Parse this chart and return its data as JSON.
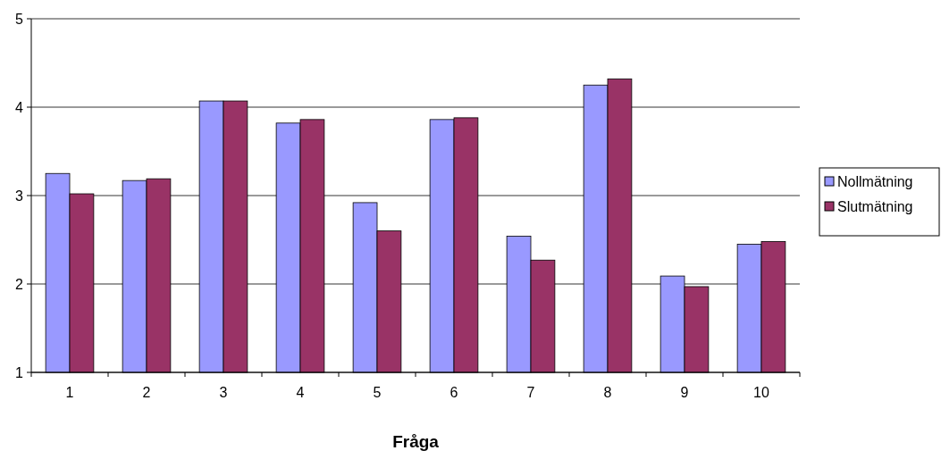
{
  "chart_data": {
    "type": "bar",
    "xlabel": "Fråga",
    "categories": [
      "1",
      "2",
      "3",
      "4",
      "5",
      "6",
      "7",
      "8",
      "9",
      "10"
    ],
    "series": [
      {
        "name": "Nollmätning",
        "color": "#9999ff",
        "values": [
          3.25,
          3.17,
          4.07,
          3.82,
          2.92,
          3.86,
          2.54,
          4.25,
          2.09,
          2.45
        ]
      },
      {
        "name": "Slutmätning",
        "color": "#993366",
        "values": [
          3.02,
          3.19,
          4.07,
          3.86,
          2.6,
          3.88,
          2.27,
          4.32,
          1.97,
          2.48
        ]
      }
    ],
    "ylim": [
      1,
      5
    ],
    "yticks": [
      1,
      2,
      3,
      4,
      5
    ],
    "grid": "y",
    "legend": "right"
  }
}
